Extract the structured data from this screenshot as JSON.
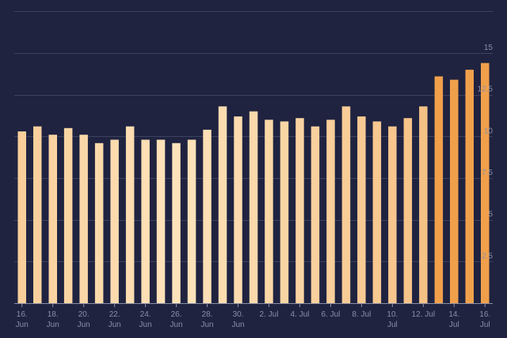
{
  "chart_data": {
    "type": "bar",
    "title": "",
    "xlabel": "",
    "ylabel": "",
    "ylim": [
      0,
      15
    ],
    "yticks": [
      "2.5",
      "5",
      "7.5",
      "10",
      "12.5",
      "15"
    ],
    "ytick_values": [
      2.5,
      5,
      7.5,
      10,
      12.5,
      15
    ],
    "grid": true,
    "legend": "none",
    "categories": [
      "16. Jun",
      "17. Jun",
      "18. Jun",
      "19. Jun",
      "20. Jun",
      "21. Jun",
      "22. Jun",
      "23. Jun",
      "24. Jun",
      "25. Jun",
      "26. Jun",
      "27. Jun",
      "28. Jun",
      "29. Jun",
      "30. Jun",
      "1. Jul",
      "2. Jul",
      "3. Jul",
      "4. Jul",
      "5. Jul",
      "6. Jul",
      "7. Jul",
      "8. Jul",
      "9. Jul",
      "10. Jul",
      "11. Jul",
      "12. Jul",
      "13. Jul",
      "14. Jul",
      "15. Jul",
      "16. Jul"
    ],
    "values": [
      10.3,
      10.6,
      10.1,
      10.5,
      10.1,
      9.6,
      9.8,
      10.6,
      9.8,
      9.8,
      9.6,
      9.8,
      10.4,
      11.8,
      11.2,
      11.5,
      11.0,
      10.9,
      11.1,
      10.6,
      11.0,
      11.8,
      11.2,
      10.9,
      10.6,
      11.1,
      11.8,
      13.6,
      13.4,
      14.0,
      14.4
    ],
    "xtick_labels": [
      {
        "index": 0,
        "line1": "16.",
        "line2": "Jun"
      },
      {
        "index": 2,
        "line1": "18.",
        "line2": "Jun"
      },
      {
        "index": 4,
        "line1": "20.",
        "line2": "Jun"
      },
      {
        "index": 6,
        "line1": "22.",
        "line2": "Jun"
      },
      {
        "index": 8,
        "line1": "24.",
        "line2": "Jun"
      },
      {
        "index": 10,
        "line1": "26.",
        "line2": "Jun"
      },
      {
        "index": 12,
        "line1": "28.",
        "line2": "Jun"
      },
      {
        "index": 14,
        "line1": "30.",
        "line2": "Jun"
      },
      {
        "index": 16,
        "line1": "2. Jul",
        "line2": ""
      },
      {
        "index": 18,
        "line1": "4. Jul",
        "line2": ""
      },
      {
        "index": 20,
        "line1": "6. Jul",
        "line2": ""
      },
      {
        "index": 22,
        "line1": "8. Jul",
        "line2": ""
      },
      {
        "index": 24,
        "line1": "10.",
        "line2": "Jul"
      },
      {
        "index": 26,
        "line1": "12. Jul",
        "line2": ""
      },
      {
        "index": 28,
        "line1": "14.",
        "line2": "Jul"
      },
      {
        "index": 30,
        "line1": "16.",
        "line2": "Jul"
      }
    ],
    "colors": {
      "background": "#1f2340",
      "bar_light": "#fde3bb",
      "bar_mid": "#f5c286",
      "bar_recent": "#f0a04b",
      "grid": "#3c4160",
      "text": "#8a8fa6"
    }
  }
}
